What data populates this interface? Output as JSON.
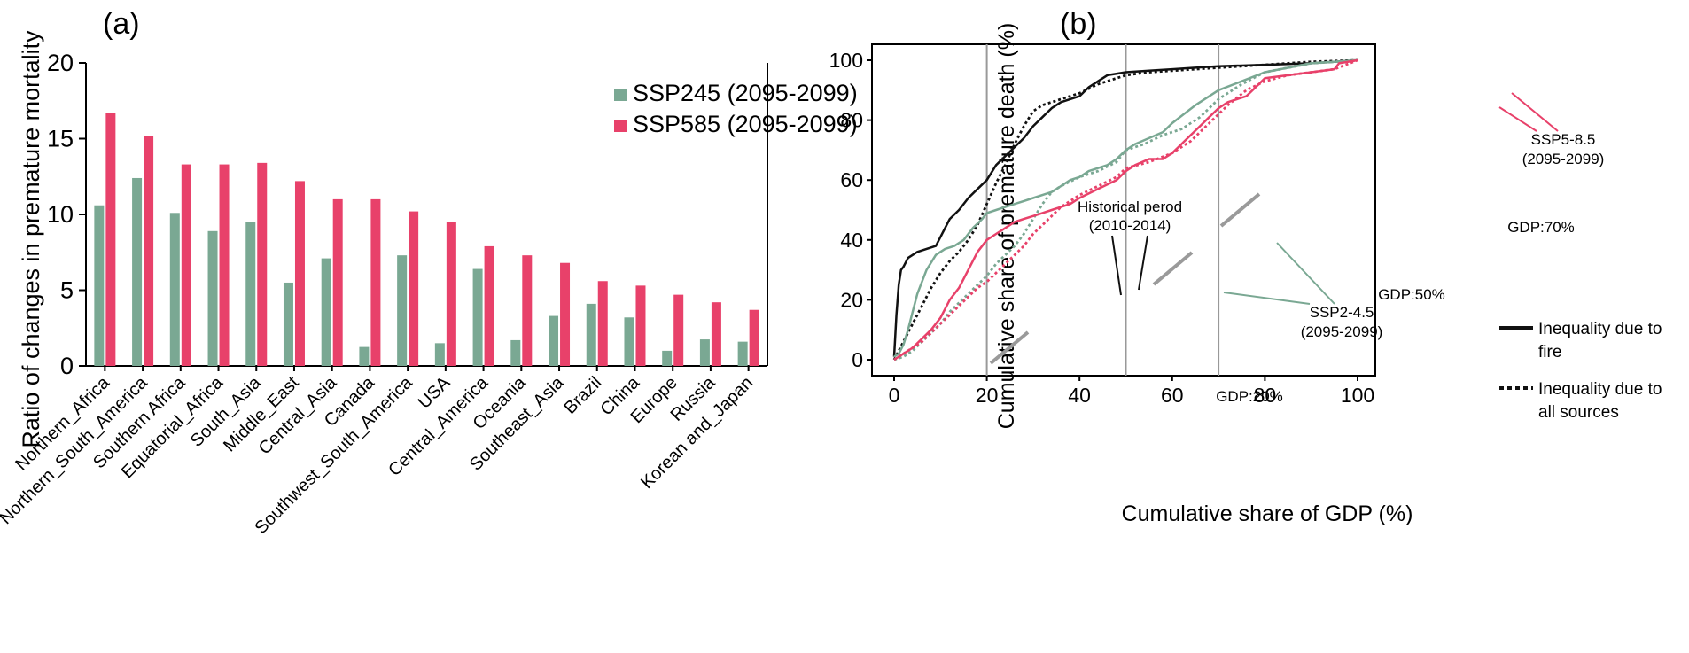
{
  "colors": {
    "ssp245": "#7aa893",
    "ssp585": "#e8416a",
    "black": "#111111",
    "gdp_line": "#999999",
    "marker": "#9a9a9a"
  },
  "chart_data": [
    {
      "type": "bar",
      "panel_label": "(a)",
      "title": "",
      "xlabel": "",
      "ylabel": "Ratio of changes in premature mortality",
      "ylim": [
        0,
        20
      ],
      "yticks": [
        "0",
        "5",
        "10",
        "15",
        "20"
      ],
      "legend_position": "top-right",
      "categories": [
        "Northern_Africa",
        "Northern_South_America",
        "Southern Africa",
        "Equatorial_Africa",
        "South_Asia",
        "Middle_East",
        "Central_Asia",
        "Canada",
        "Southwest_South_America",
        "USA",
        "Central_America",
        "Oceania",
        "Southeast_Asia",
        "Brazil",
        "China",
        "Europe",
        "Russia",
        "Korean and_Japan"
      ],
      "series": [
        {
          "name": "SSP245 (2095-2099)",
          "color_key": "ssp245",
          "values": [
            10.6,
            12.4,
            10.1,
            8.9,
            9.5,
            5.5,
            7.1,
            1.25,
            7.3,
            1.5,
            6.4,
            1.7,
            3.3,
            4.1,
            3.2,
            1.0,
            1.75,
            1.6
          ]
        },
        {
          "name": "SSP585 (2095-2099)",
          "color_key": "ssp585",
          "values": [
            16.7,
            15.2,
            13.3,
            13.3,
            13.4,
            12.2,
            11.0,
            11.0,
            10.2,
            9.5,
            7.9,
            7.3,
            6.8,
            5.6,
            5.3,
            4.7,
            4.2,
            3.7
          ]
        }
      ]
    },
    {
      "type": "line",
      "panel_label": "(b)",
      "title": "",
      "xlabel": "Cumulative share of GDP (%)",
      "ylabel": "Cumulative share of premature death (%)",
      "xlim": [
        0,
        100
      ],
      "ylim": [
        0,
        100
      ],
      "xticks": [
        "0",
        "20",
        "40",
        "60",
        "80",
        "100"
      ],
      "yticks": [
        "0",
        "20",
        "40",
        "60",
        "80",
        "100"
      ],
      "gdp_markers": [
        20,
        50,
        70
      ],
      "gdp_marker_labels": [
        "GDP:20%",
        "GDP:50%",
        "GDP:70%"
      ],
      "annotations": {
        "historical": [
          "Historical perod",
          "(2010-2014)"
        ],
        "ssp245": [
          "SSP2-4.5",
          "(2095-2099)"
        ],
        "ssp585": [
          "SSP5-8.5",
          "(2095-2099)"
        ]
      },
      "legend": {
        "fire": [
          "Inequality due to",
          "fire"
        ],
        "all": [
          "Inequality due to",
          "all sources"
        ]
      },
      "series": [
        {
          "group": "historical",
          "style": "solid",
          "color_key": "black",
          "x": [
            0,
            0.5,
            1,
            1.5,
            2,
            3,
            5,
            7,
            9,
            10,
            12,
            14,
            16,
            18,
            20,
            22,
            24,
            26,
            28,
            30,
            32,
            34,
            36,
            38,
            40,
            42,
            44,
            46,
            50,
            55,
            60,
            65,
            70,
            80,
            90,
            100
          ],
          "y": [
            1,
            15,
            25,
            30,
            31,
            34,
            36,
            37,
            38,
            41,
            47,
            50,
            54,
            57,
            60,
            65,
            68,
            71,
            74,
            78,
            81,
            84,
            86,
            87,
            88,
            91,
            93,
            95,
            96,
            96.5,
            97,
            97.5,
            98,
            98.5,
            99,
            100
          ]
        },
        {
          "group": "historical",
          "style": "dotted",
          "color_key": "black",
          "x": [
            0,
            2,
            4,
            6,
            8,
            10,
            12,
            14,
            16,
            18,
            20,
            22,
            24,
            26,
            28,
            30,
            32,
            34,
            36,
            40,
            44,
            48,
            50,
            55,
            60,
            70,
            80,
            90,
            100
          ],
          "y": [
            0,
            6,
            12,
            18,
            24,
            29,
            33,
            36,
            40,
            45,
            52,
            59,
            65,
            72,
            78,
            83,
            85,
            86,
            87,
            89,
            92,
            94,
            95,
            96,
            96.5,
            97.5,
            98.5,
            99.5,
            100
          ]
        },
        {
          "group": "ssp245",
          "style": "solid",
          "color_key": "ssp245",
          "x": [
            0,
            1,
            2,
            3,
            4,
            5,
            7,
            9,
            11,
            13,
            15,
            17,
            19,
            20,
            22,
            24,
            26,
            28,
            30,
            32,
            34,
            36,
            38,
            40,
            42,
            44,
            46,
            48,
            50,
            52,
            55,
            58,
            60,
            65,
            70,
            75,
            80,
            90,
            100
          ],
          "y": [
            1,
            2,
            5,
            10,
            16,
            22,
            30,
            35,
            37,
            38,
            40,
            44,
            47,
            49,
            50,
            51,
            52,
            53,
            54,
            55,
            56,
            58,
            60,
            61,
            63,
            64,
            65,
            67,
            70,
            72,
            74,
            76,
            79,
            85,
            90,
            93,
            96,
            99,
            100
          ]
        },
        {
          "group": "ssp245",
          "style": "dotted",
          "color_key": "ssp245",
          "x": [
            0,
            2,
            4,
            6,
            8,
            10,
            12,
            14,
            16,
            18,
            20,
            22,
            24,
            26,
            28,
            30,
            32,
            34,
            36,
            40,
            44,
            48,
            50,
            54,
            58,
            62,
            66,
            70,
            75,
            80,
            90,
            100
          ],
          "y": [
            0,
            1,
            3,
            6,
            9,
            12,
            16,
            19,
            22,
            25,
            28,
            32,
            35,
            38,
            42,
            47,
            52,
            56,
            58,
            61,
            63,
            66,
            70,
            72,
            75,
            77,
            81,
            87,
            92,
            96,
            99,
            100
          ]
        },
        {
          "group": "ssp585",
          "style": "solid",
          "color_key": "ssp585",
          "x": [
            0,
            2,
            4,
            6,
            8,
            10,
            12,
            14,
            16,
            18,
            20,
            22,
            24,
            26,
            28,
            30,
            32,
            34,
            36,
            38,
            40,
            44,
            48,
            50,
            52,
            55,
            58,
            60,
            62,
            64,
            66,
            68,
            70,
            72,
            74,
            76,
            80,
            85,
            90,
            95,
            96,
            100
          ],
          "y": [
            0,
            2,
            4,
            7,
            10,
            14,
            20,
            24,
            30,
            36,
            40,
            42,
            44,
            46,
            47,
            48,
            49,
            50,
            51,
            52,
            54,
            57,
            60,
            63,
            65,
            67,
            67,
            69,
            72,
            75,
            78,
            81,
            84,
            86,
            87,
            88,
            94,
            95,
            96,
            97,
            99,
            100
          ]
        },
        {
          "group": "ssp585",
          "style": "dotted",
          "color_key": "ssp585",
          "x": [
            0,
            2,
            4,
            6,
            8,
            10,
            12,
            14,
            16,
            18,
            20,
            22,
            24,
            26,
            28,
            30,
            32,
            34,
            36,
            40,
            44,
            48,
            50,
            55,
            60,
            64,
            68,
            72,
            76,
            80,
            85,
            90,
            95,
            100
          ],
          "y": [
            0,
            2,
            4,
            6,
            9,
            12,
            15,
            18,
            21,
            24,
            26,
            29,
            32,
            35,
            38,
            42,
            45,
            48,
            51,
            55,
            58,
            61,
            64,
            66,
            69,
            73,
            79,
            85,
            90,
            93,
            95,
            96,
            97,
            100
          ]
        }
      ]
    }
  ]
}
